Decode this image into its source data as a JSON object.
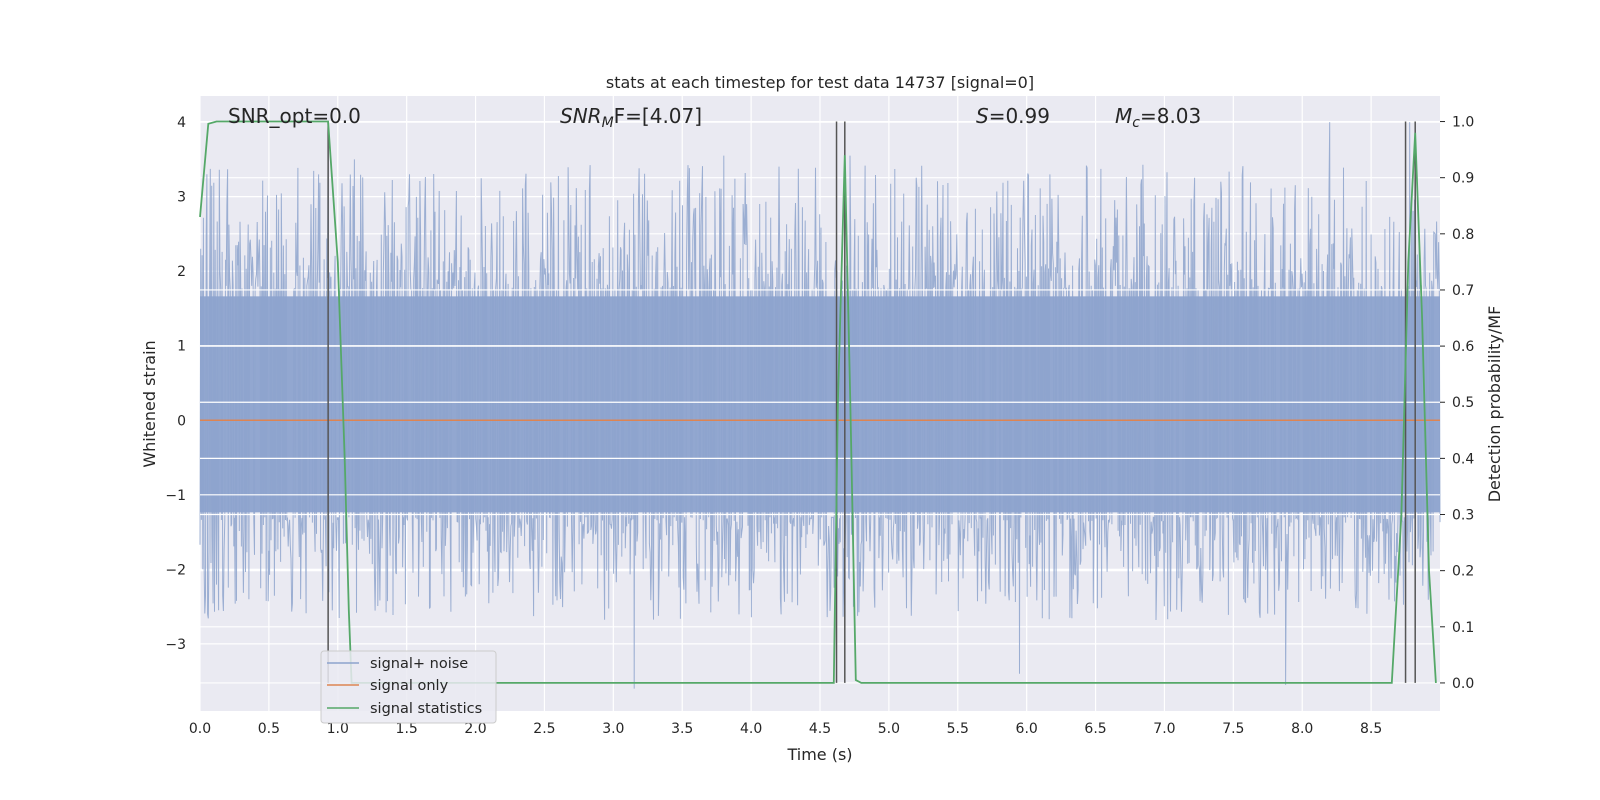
{
  "chart_data": {
    "type": "line",
    "title": "stats at each timestep for test data 14737 [signal=0]",
    "xlabel": "Time (s)",
    "ylabel_left": "Whitened strain",
    "ylabel_right": "Detection probability/MF",
    "xlim": [
      0.0,
      9.0
    ],
    "ylim_left": [
      -3.9,
      4.35
    ],
    "ylim_right": [
      -0.05,
      1.0455
    ],
    "x_ticks": [
      "0.0",
      "0.5",
      "1.0",
      "1.5",
      "2.0",
      "2.5",
      "3.0",
      "3.5",
      "4.0",
      "4.5",
      "5.0",
      "5.5",
      "6.0",
      "6.5",
      "7.0",
      "7.5",
      "8.0",
      "8.5"
    ],
    "y_ticks_left": [
      "4",
      "3",
      "2",
      "1",
      "0",
      "−1",
      "−2",
      "−3"
    ],
    "y_ticks_right": [
      "1.0",
      "0.9",
      "0.8",
      "0.7",
      "0.6",
      "0.5",
      "0.4",
      "0.3",
      "0.2",
      "0.1",
      "0.0"
    ],
    "grid": true,
    "legend_position": "lower-left",
    "annotations": {
      "snr_opt": "SNR_opt=0.0",
      "snr_mf_prefix": "SNR",
      "snr_mf_sub": "M",
      "snr_mf_suffix": "F=[4.07]",
      "s_label": "S",
      "s_value": "=0.99",
      "mc_label": "M",
      "mc_sub": "c",
      "mc_value": "=8.03"
    },
    "series": [
      {
        "name": "signal+ noise",
        "color": "#8da3cd",
        "axis": "left",
        "envelope": {
          "typical_range": [
            -1.3,
            1.75
          ],
          "peak_range": [
            -3.6,
            4.0
          ]
        },
        "notable_peaks": [
          {
            "x": 0.05,
            "y": 3.3
          },
          {
            "x": 0.93,
            "y": 4.0
          },
          {
            "x": 1.12,
            "y": 3.5
          },
          {
            "x": 1.52,
            "y": 3.3
          },
          {
            "x": 3.15,
            "y": -3.6
          },
          {
            "x": 3.8,
            "y": 3.55
          },
          {
            "x": 4.72,
            "y": 3.55
          },
          {
            "x": 7.88,
            "y": -3.55
          },
          {
            "x": 8.2,
            "y": 4.0
          },
          {
            "x": 8.78,
            "y": 4.0
          },
          {
            "x": 5.95,
            "y": -3.4
          }
        ]
      },
      {
        "name": "signal only",
        "color": "#dd8452",
        "axis": "left",
        "x": [
          0.0,
          9.0
        ],
        "y": [
          0.0,
          0.0
        ]
      },
      {
        "name": "signal statistics",
        "color": "#55a868",
        "axis": "right",
        "x": [
          0.0,
          0.06,
          0.12,
          0.93,
          1.0,
          1.05,
          1.08,
          1.1,
          1.2,
          4.55,
          4.6,
          4.63,
          4.68,
          4.72,
          4.76,
          4.8,
          8.65,
          8.72,
          8.77,
          8.82,
          8.87,
          8.92,
          8.97
        ],
        "y": [
          0.83,
          0.996,
          1.0,
          1.0,
          0.75,
          0.4,
          0.13,
          0.0,
          0.0,
          0.0,
          0.0,
          0.5,
          0.94,
          0.5,
          0.005,
          0.0,
          0.0,
          0.3,
          0.75,
          0.98,
          0.65,
          0.2,
          0.0
        ]
      }
    ],
    "vertical_markers": [
      {
        "x": 0.93,
        "color": "#555555"
      },
      {
        "x": 4.62,
        "color": "#555555"
      },
      {
        "x": 4.68,
        "color": "#555555"
      },
      {
        "x": 8.75,
        "color": "#555555"
      },
      {
        "x": 8.82,
        "color": "#555555"
      }
    ]
  }
}
